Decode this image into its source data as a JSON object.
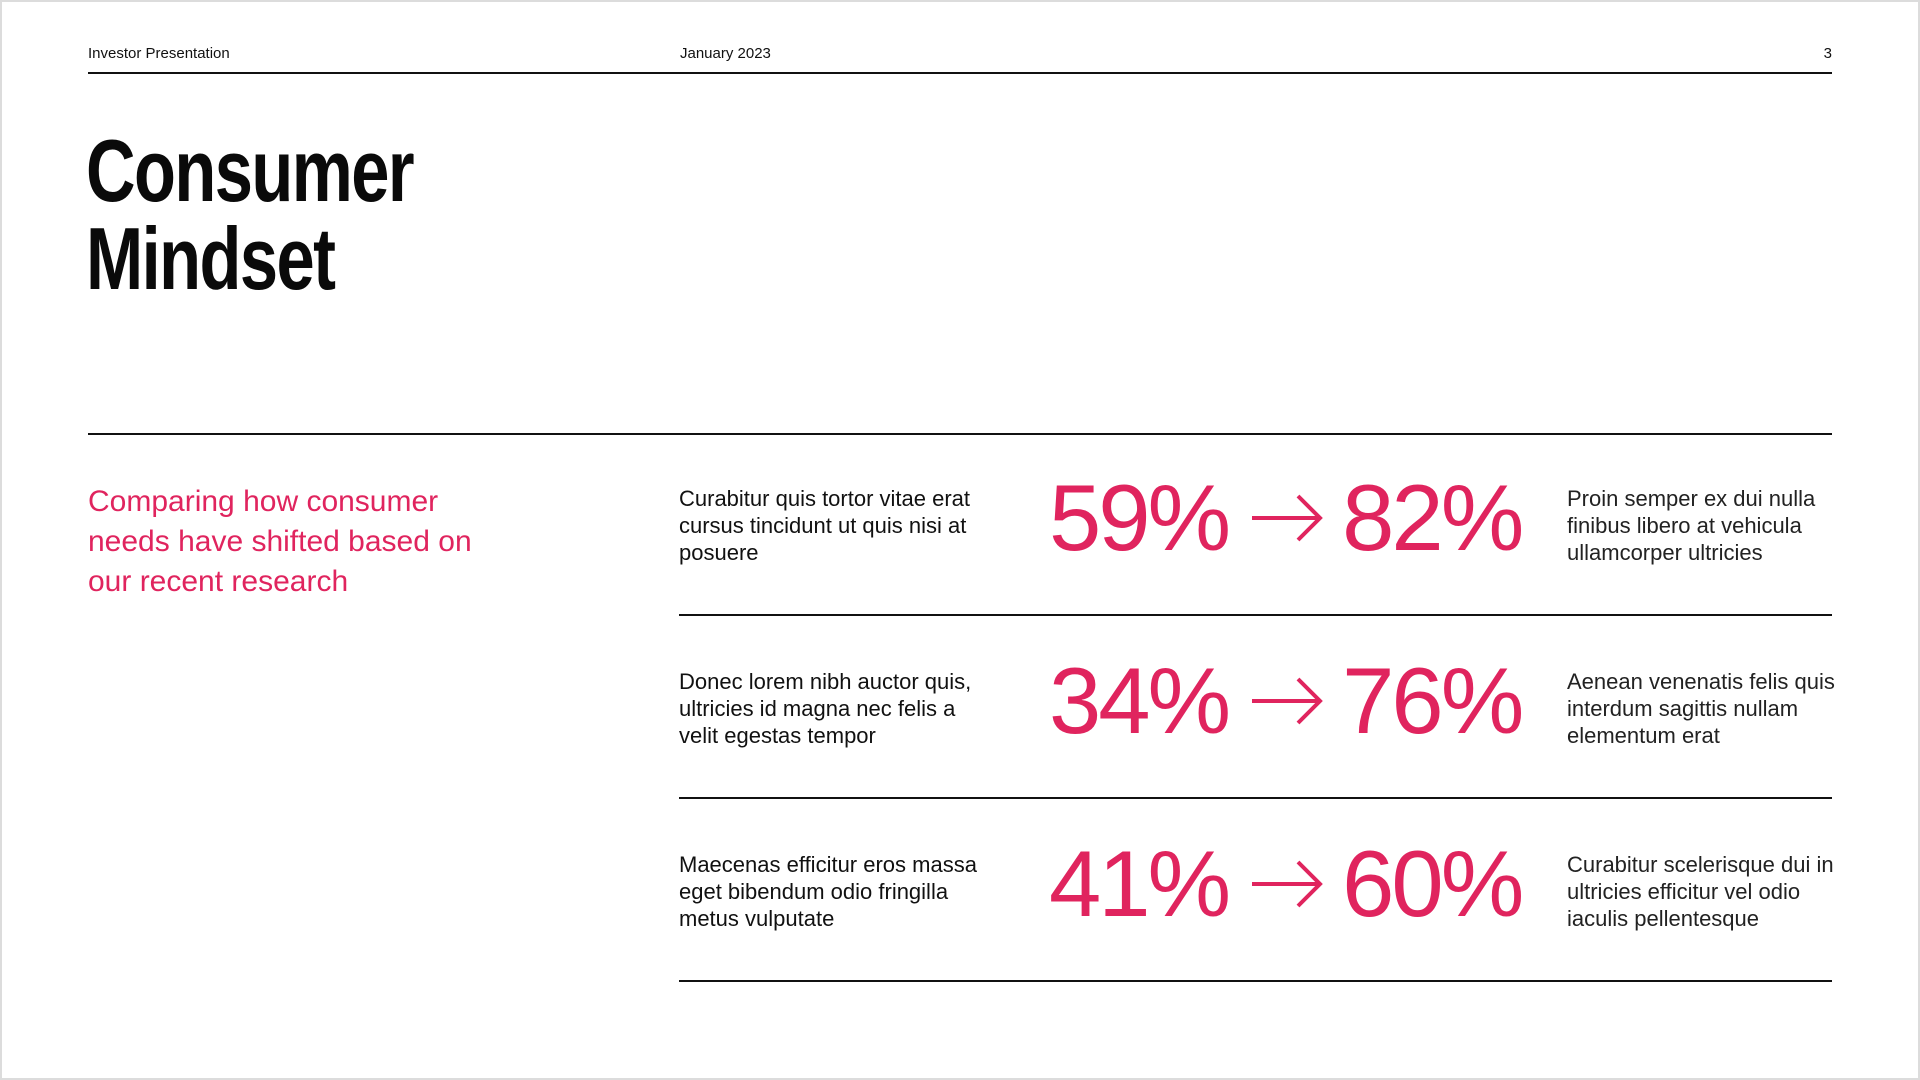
{
  "header": {
    "left": "Investor Presentation",
    "middle": "January 2023",
    "page_number": "3"
  },
  "title": {
    "line1": "Consumer",
    "line2": "Mindset"
  },
  "subtitle": "Comparing how consumer needs have shifted based on our recent research",
  "accent_color": "#e0245e",
  "stats": [
    {
      "description": "Curabitur quis tortor vitae erat cursus tincidunt ut quis nisi at posuere",
      "from": "59%",
      "arrow_icon": "arrow-right-icon",
      "to": "82%",
      "note": "Proin semper ex dui nulla finibus libero at vehicula ullamcorper ultricies"
    },
    {
      "description": "Donec lorem nibh auctor quis, ultricies id magna nec felis a velit egestas tempor",
      "from": "34%",
      "arrow_icon": "arrow-right-icon",
      "to": "76%",
      "note": "Aenean venenatis felis quis interdum sagittis nullam elementum erat"
    },
    {
      "description": "Maecenas efficitur eros massa eget bibendum odio fringilla metus vulputate",
      "from": "41%",
      "arrow_icon": "arrow-right-icon",
      "to": "60%",
      "note": "Curabitur scelerisque dui in ultricies efficitur vel odio iaculis pellentesque"
    }
  ]
}
